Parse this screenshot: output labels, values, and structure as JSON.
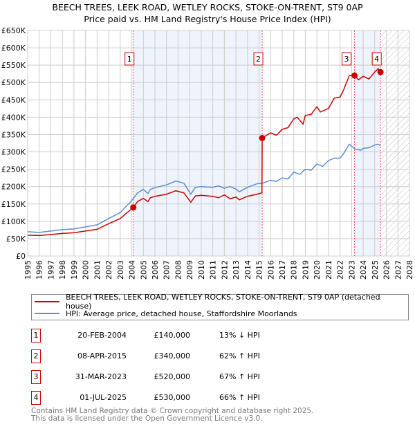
{
  "chart_data": {
    "type": "line",
    "title": "BEECH TREES, LEEK ROAD, WETLEY ROCKS, STOKE-ON-TRENT, ST9 0AP",
    "subtitle": "Price paid vs. HM Land Registry's House Price Index (HPI)",
    "xlim": [
      1995,
      2028
    ],
    "ylim": [
      0,
      650000
    ],
    "y_ticks": [
      0,
      50000,
      100000,
      150000,
      200000,
      250000,
      300000,
      350000,
      400000,
      450000,
      500000,
      550000,
      600000,
      650000
    ],
    "y_tick_labels": [
      "£0",
      "£50K",
      "£100K",
      "£150K",
      "£200K",
      "£250K",
      "£300K",
      "£350K",
      "£400K",
      "£450K",
      "£500K",
      "£550K",
      "£600K",
      "£650K"
    ],
    "x_ticks": [
      1995,
      1996,
      1997,
      1998,
      1999,
      2000,
      2001,
      2002,
      2003,
      2004,
      2005,
      2006,
      2007,
      2008,
      2009,
      2010,
      2011,
      2012,
      2013,
      2014,
      2015,
      2016,
      2017,
      2018,
      2019,
      2020,
      2021,
      2022,
      2023,
      2024,
      2025,
      2026,
      2027,
      2028
    ],
    "grid": true,
    "series": [
      {
        "name": "BEECH TREES, LEEK ROAD, WETLEY ROCKS, STOKE-ON-TRENT, ST9 0AP (detached house)",
        "color": "#cc0000",
        "x": [
          1995,
          1996,
          1997,
          1998,
          1999,
          2000,
          2001,
          2002,
          2003,
          2004.13,
          2004.5,
          2005,
          2005.4,
          2005.6,
          2006,
          2007,
          2007.8,
          2008.5,
          2009.1,
          2009.5,
          2010,
          2011,
          2011.5,
          2012,
          2012.5,
          2013,
          2013.3,
          2014,
          2014.8,
          2015.25,
          2015.27,
          2016,
          2016.5,
          2017,
          2017.5,
          2018,
          2018.3,
          2018.8,
          2019,
          2019.5,
          2020,
          2020.3,
          2021,
          2021.5,
          2022,
          2022.3,
          2022.8,
          2023.25,
          2023.6,
          2024,
          2024.5,
          2025,
          2025.3,
          2025.5
        ],
        "y": [
          60000,
          59000,
          62000,
          65000,
          67000,
          72000,
          77000,
          93000,
          108000,
          140000,
          157000,
          166000,
          157000,
          168000,
          172000,
          178000,
          188000,
          182000,
          155000,
          173000,
          175000,
          172000,
          168000,
          176000,
          165000,
          170000,
          162000,
          172000,
          178000,
          182000,
          340000,
          355000,
          348000,
          365000,
          370000,
          395000,
          400000,
          380000,
          405000,
          408000,
          430000,
          415000,
          425000,
          455000,
          458000,
          478000,
          520000,
          520000,
          508000,
          518000,
          510000,
          530000,
          540000,
          530000
        ]
      },
      {
        "name": "HPI: Average price, detached house, Staffordshire Moorlands",
        "color": "#5b8fd0",
        "x": [
          1995,
          1996,
          1997,
          1998,
          1999,
          2000,
          2001,
          2002,
          2003,
          2004,
          2004.5,
          2005,
          2005.4,
          2005.6,
          2006,
          2007,
          2007.8,
          2008.5,
          2009.1,
          2009.5,
          2010,
          2011,
          2011.5,
          2012,
          2012.5,
          2013,
          2013.3,
          2014,
          2014.8,
          2015.3,
          2016,
          2016.5,
          2017,
          2017.5,
          2018,
          2018.5,
          2019,
          2019.5,
          2020,
          2020.5,
          2021,
          2021.5,
          2022,
          2022.3,
          2022.8,
          2023.3,
          2023.8,
          2024,
          2024.5,
          2025,
          2025.3,
          2025.5
        ],
        "y": [
          70000,
          68000,
          72000,
          76000,
          78000,
          84000,
          90000,
          108000,
          125000,
          160000,
          182000,
          192000,
          180000,
          192000,
          197000,
          205000,
          216000,
          210000,
          178000,
          198000,
          200000,
          198000,
          202000,
          195000,
          200000,
          193000,
          185000,
          198000,
          208000,
          210000,
          218000,
          215000,
          225000,
          222000,
          242000,
          235000,
          250000,
          247000,
          265000,
          258000,
          275000,
          282000,
          282000,
          295000,
          322000,
          308000,
          305000,
          310000,
          312000,
          320000,
          322000,
          318000
        ]
      }
    ],
    "sales": [
      {
        "label": "1",
        "x": 2004.13,
        "y": 140000,
        "date": "20-FEB-2004",
        "price": "£140,000",
        "hpi": "13% ↓ HPI"
      },
      {
        "label": "2",
        "x": 2015.27,
        "y": 340000,
        "date": "08-APR-2015",
        "price": "£340,000",
        "hpi": "62% ↑ HPI"
      },
      {
        "label": "3",
        "x": 2023.25,
        "y": 520000,
        "date": "31-MAR-2023",
        "price": "£520,000",
        "hpi": "67% ↑ HPI"
      },
      {
        "label": "4",
        "x": 2025.5,
        "y": 530000,
        "date": "01-JUL-2025",
        "price": "£530,000",
        "hpi": "66% ↑ HPI"
      }
    ],
    "shaded_ranges": [
      [
        2004.13,
        2015.27
      ],
      [
        2023.25,
        2025.5
      ]
    ],
    "forecast_hatch_from": 2025.5,
    "legend_placement": "below"
  },
  "footer": {
    "line1": "Contains HM Land Registry data © Crown copyright and database right 2025.",
    "line2": "This data is licensed under the Open Government Licence v3.0."
  }
}
